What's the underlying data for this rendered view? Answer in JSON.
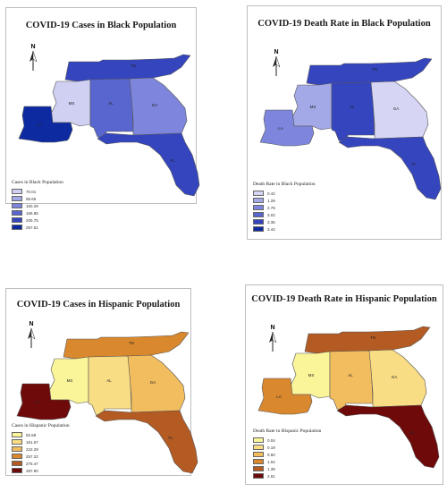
{
  "state_labels": {
    "TN": "TN",
    "MS": "MS",
    "AL": "AL",
    "GA": "GA",
    "LA": "LA",
    "FL": "FL"
  },
  "north_label": "N",
  "panels": [
    {
      "title": "COVID-19 Cases in Black Population",
      "legend_title": "Cases in Black Population",
      "legend": [
        {
          "label": "70.01",
          "color": "#cfd0f2"
        },
        {
          "label": "96.65",
          "color": "#a3a8e6"
        },
        {
          "label": "160.29",
          "color": "#7d86dc"
        },
        {
          "label": "166.85",
          "color": "#5a66d0"
        },
        {
          "label": "205.75",
          "color": "#3545be"
        },
        {
          "label": "257.51",
          "color": "#0e2aa1"
        }
      ],
      "fills": {
        "TN": "#3545be",
        "MS": "#cfd0f2",
        "AL": "#5a66d0",
        "GA": "#7d86dc",
        "LA": "#0e2aa1",
        "FL": "#3545be"
      }
    },
    {
      "title": "COVID-19 Death Rate in Black Population",
      "legend_title": "Death Rate in Black Population",
      "legend": [
        {
          "label": "0.42",
          "color": "#d6d6f4"
        },
        {
          "label": "1.29",
          "color": "#a3a8e6"
        },
        {
          "label": "2.76",
          "color": "#7d86dc"
        },
        {
          "label": "3.02",
          "color": "#5a66d0"
        },
        {
          "label": "3.35",
          "color": "#3545be"
        },
        {
          "label": "3.44",
          "color": "#0e2aa1"
        }
      ],
      "fills": {
        "TN": "#3545be",
        "MS": "#a3a8e6",
        "AL": "#3545be",
        "GA": "#d6d6f4",
        "LA": "#7d86dc",
        "FL": "#3545be"
      }
    },
    {
      "title": "COVID-19 Cases in Hispanic Population",
      "legend_title": "Cases in Hispanic Population",
      "legend": [
        {
          "label": "82.68",
          "color": "#fbf59a"
        },
        {
          "label": "161.57",
          "color": "#f8dd84"
        },
        {
          "label": "222.29",
          "color": "#f2bd5e"
        },
        {
          "label": "257.22",
          "color": "#d9882e"
        },
        {
          "label": "275.47",
          "color": "#b45a23"
        },
        {
          "label": "287.90",
          "color": "#6e0a0a"
        }
      ],
      "fills": {
        "TN": "#d9882e",
        "MS": "#fbf59a",
        "AL": "#f8dd84",
        "GA": "#f2bd5e",
        "LA": "#6e0a0a",
        "FL": "#b45a23"
      }
    },
    {
      "title": "COVID-19 Death Rate in Hispanic Population",
      "legend_title": "Death Rate in Hispanic Population",
      "legend": [
        {
          "label": "0.04",
          "color": "#fbf59a"
        },
        {
          "label": "0.19",
          "color": "#f8dd84"
        },
        {
          "label": "0.50",
          "color": "#f2bd5e"
        },
        {
          "label": "1.04",
          "color": "#d9882e"
        },
        {
          "label": "1.39",
          "color": "#b45a23"
        },
        {
          "label": "2.61",
          "color": "#6e0a0a"
        }
      ],
      "fills": {
        "TN": "#b45a23",
        "MS": "#fbf59a",
        "AL": "#f2bd5e",
        "GA": "#f8dd84",
        "LA": "#d9882e",
        "FL": "#6e0a0a"
      }
    }
  ]
}
